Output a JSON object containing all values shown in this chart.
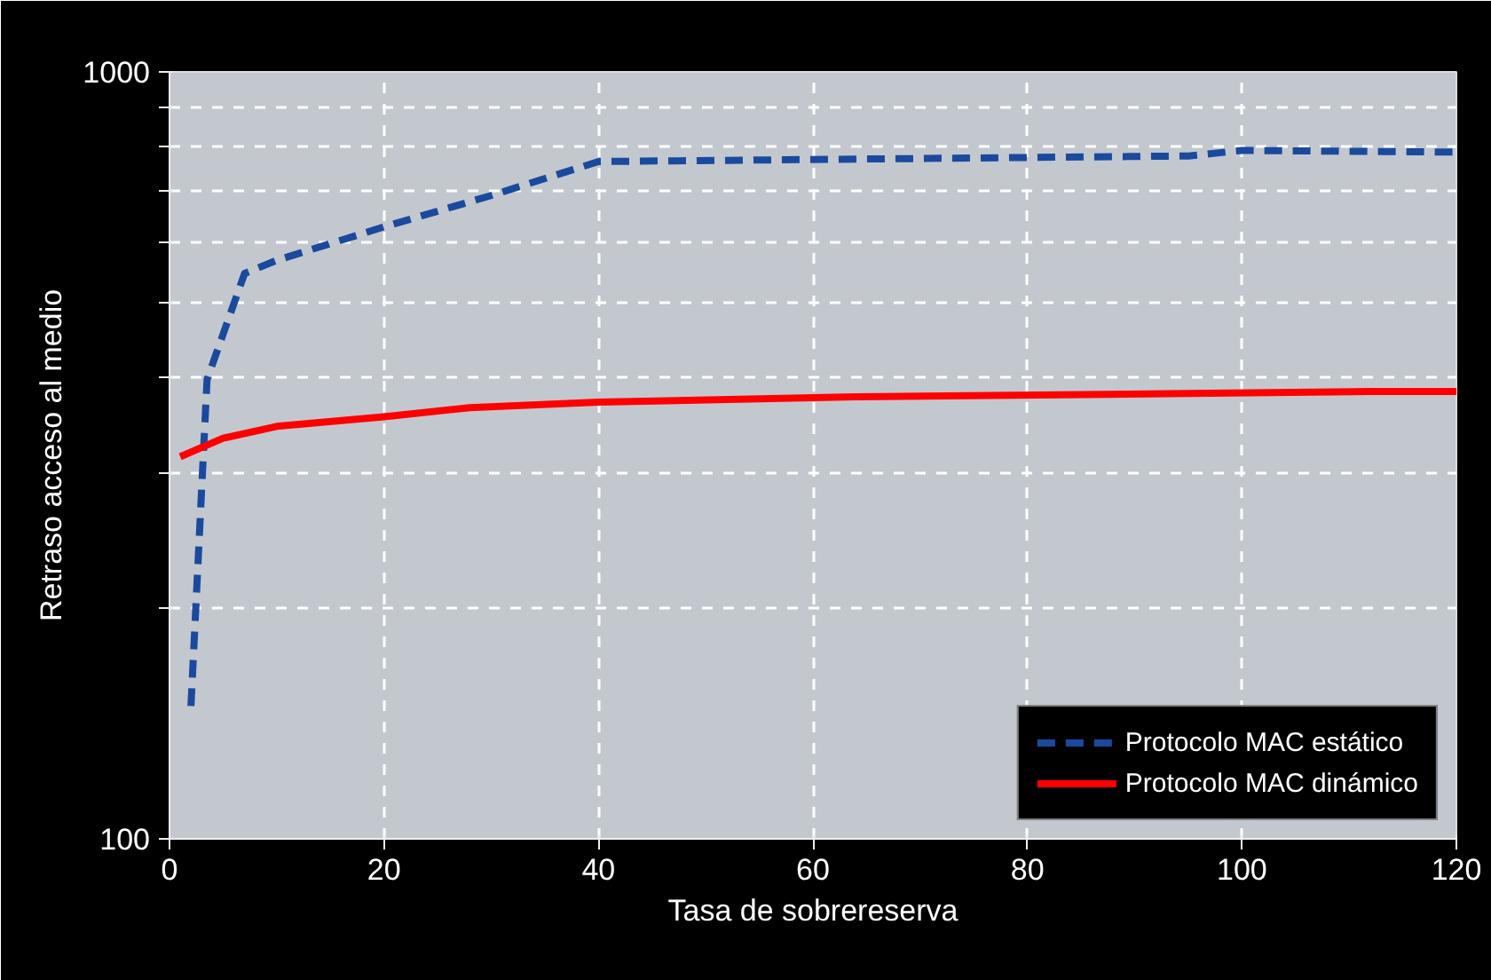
{
  "chart_data": {
    "type": "line",
    "xlabel": "Tasa de sobrereserva",
    "ylabel": "Retraso acceso al medio",
    "log": "y",
    "xlim": [
      0,
      120
    ],
    "ylim": [
      100,
      1000
    ],
    "xticks": [
      0,
      20,
      40,
      60,
      80,
      100,
      120
    ],
    "yticks": [
      100,
      {
        "value": 200,
        "label": null
      },
      {
        "value": 300,
        "label": null
      },
      {
        "value": 400,
        "label": null
      },
      {
        "value": 500,
        "label": null
      },
      {
        "value": 600,
        "label": null
      },
      {
        "value": 700,
        "label": null
      },
      {
        "value": 800,
        "label": null
      },
      {
        "value": 900,
        "label": null
      },
      1000
    ],
    "grid": true,
    "legend": "bottom right",
    "marker": "none",
    "series": [
      {
        "name": "Protocolo MAC estático",
        "color": "#1a4a9e",
        "line_style": "dashed",
        "x": [
          2,
          3.5,
          7,
          10,
          20,
          30,
          40,
          95,
          100,
          120
        ],
        "values": [
          149,
          397,
          546,
          568,
          628,
          690,
          764,
          777,
          790,
          786
        ]
      },
      {
        "name": "Protocolo MAC dinámico",
        "color": "#ff0000",
        "line_style": "solid",
        "x": [
          1,
          5,
          10,
          20,
          28,
          40,
          64,
          112,
          120
        ],
        "values": [
          315,
          333,
          345,
          355,
          365,
          371,
          377,
          383,
          383
        ]
      }
    ]
  }
}
